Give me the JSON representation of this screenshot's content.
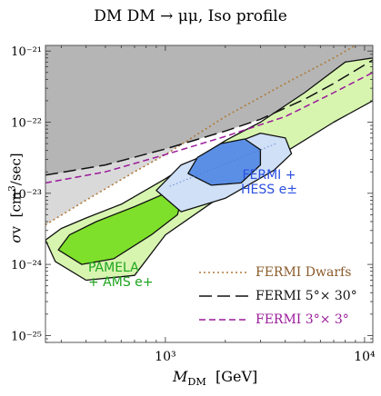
{
  "title": "DM DM → μμ,  Iso profile",
  "xlabel": "M_DM  [GeV]",
  "ylabel": "σv  [cm³/sec]",
  "annotations": {
    "fermi_hess_line1": "FERMI +",
    "fermi_hess_line2": "HESS e±",
    "pamela_line1": "PAMELA",
    "pamela_line2": "+ AMS e+"
  },
  "legend": [
    {
      "label": "FERMI Dwarfs",
      "color": "#b07a3a",
      "dash": "dotted"
    },
    {
      "label": "FERMI 5°× 30°",
      "color": "#111111",
      "dash": "longdash"
    },
    {
      "label": "FERMI 3°× 3°",
      "color": "#9a1a9a",
      "dash": "dashed"
    }
  ],
  "colors": {
    "excluded_dark": "#b5b5b5",
    "excluded_light": "#d9d9d9",
    "pamela_inner": "#7ee02a",
    "pamela_outer": "#d8f5b0",
    "fermi_inner": "#5b8fe6",
    "fermi_outer": "#cfe0f7"
  },
  "chart_data": {
    "type": "line",
    "title": "DM DM → μμ,  Iso profile",
    "xlabel": "M_DM [GeV]",
    "ylabel": "σv [cm³/sec]",
    "x_scale": "log",
    "y_scale": "log",
    "xlim": [
      250,
      11000
    ],
    "ylim": [
      8e-26,
      1.2e-21
    ],
    "x_ticks": [
      {
        "value": 1000,
        "label": "10³"
      },
      {
        "value": 10000,
        "label": "10⁴"
      }
    ],
    "y_ticks": [
      {
        "value": 1e-21,
        "label": "10⁻²¹"
      },
      {
        "value": 1e-22,
        "label": "10⁻²²"
      },
      {
        "value": 1e-23,
        "label": "10⁻²³"
      },
      {
        "value": 1e-24,
        "label": "10⁻²⁴"
      },
      {
        "value": 1e-25,
        "label": "10⁻²⁵"
      }
    ],
    "series": [
      {
        "name": "FERMI Dwarfs",
        "style": "dotted",
        "points": [
          [
            250,
            3.6e-24
          ],
          [
            400,
            8e-24
          ],
          [
            700,
            2e-23
          ],
          [
            1000,
            3.5e-23
          ],
          [
            2000,
            1.2e-22
          ],
          [
            4000,
            3.5e-22
          ],
          [
            7000,
            8e-22
          ],
          [
            9000,
            1.2e-21
          ]
        ]
      },
      {
        "name": "FERMI 5°× 30°",
        "style": "longdash",
        "points": [
          [
            250,
            1.8e-23
          ],
          [
            500,
            2.5e-23
          ],
          [
            1000,
            4.2e-23
          ],
          [
            2000,
            7.5e-23
          ],
          [
            3000,
            1.1e-22
          ],
          [
            5000,
            2.1e-22
          ],
          [
            7000,
            3.5e-22
          ],
          [
            11000,
            7.5e-22
          ]
        ]
      },
      {
        "name": "FERMI 3°× 3°",
        "style": "dashed",
        "points": [
          [
            250,
            1.4e-23
          ],
          [
            500,
            2e-23
          ],
          [
            1000,
            3.5e-23
          ],
          [
            2000,
            6.3e-23
          ],
          [
            4000,
            1.2e-22
          ],
          [
            7000,
            2.6e-22
          ],
          [
            11000,
            5e-22
          ]
        ]
      }
    ],
    "regions": [
      {
        "name": "PAMELA + AMS e+",
        "levels": [
          {
            "level": "outer",
            "points": [
              [
                250,
                2.2e-24
              ],
              [
                280,
                1.1e-24
              ],
              [
                400,
                6e-25
              ],
              [
                700,
                7e-25
              ],
              [
                1000,
                2.6e-24
              ],
              [
                2000,
                1e-23
              ],
              [
                4000,
                3.8e-23
              ],
              [
                7000,
                1e-22
              ],
              [
                11000,
                2e-22
              ],
              [
                11000,
                8e-22
              ],
              [
                8000,
                7e-22
              ],
              [
                5000,
                2.6e-22
              ],
              [
                3000,
                1e-22
              ],
              [
                2000,
                5.5e-23
              ],
              [
                1000,
                1.6e-23
              ],
              [
                600,
                7e-24
              ],
              [
                400,
                4.5e-24
              ],
              [
                300,
                3.2e-24
              ]
            ]
          },
          {
            "level": "inner",
            "points": [
              [
                290,
                1.6e-24
              ],
              [
                380,
                1e-24
              ],
              [
                550,
                1.2e-24
              ],
              [
                850,
                2.6e-24
              ],
              [
                1150,
                5e-24
              ],
              [
                1200,
                8e-24
              ],
              [
                1000,
                1e-23
              ],
              [
                700,
                6.5e-24
              ],
              [
                450,
                4e-24
              ],
              [
                330,
                2.6e-24
              ]
            ]
          }
        ]
      },
      {
        "name": "FERMI + HESS e±",
        "levels": [
          {
            "level": "outer",
            "points": [
              [
                900,
                1.1e-23
              ],
              [
                1200,
                5.5e-24
              ],
              [
                2000,
                8.5e-24
              ],
              [
                3500,
                2.1e-23
              ],
              [
                4300,
                3.6e-23
              ],
              [
                4000,
                6e-23
              ],
              [
                3000,
                7e-23
              ],
              [
                2000,
                4.5e-23
              ],
              [
                1200,
                2.5e-23
              ]
            ]
          },
          {
            "level": "inner",
            "points": [
              [
                1300,
                1.9e-23
              ],
              [
                1700,
                1.3e-23
              ],
              [
                2400,
                1.4e-23
              ],
              [
                3000,
                2.5e-23
              ],
              [
                3000,
                4.1e-23
              ],
              [
                2500,
                5.8e-23
              ],
              [
                1900,
                5e-23
              ],
              [
                1450,
                3.2e-23
              ]
            ]
          }
        ]
      }
    ],
    "excluded_region": "shaded gray area above the FERMI bounds",
    "grid": false,
    "legend_position": "bottom-right"
  }
}
